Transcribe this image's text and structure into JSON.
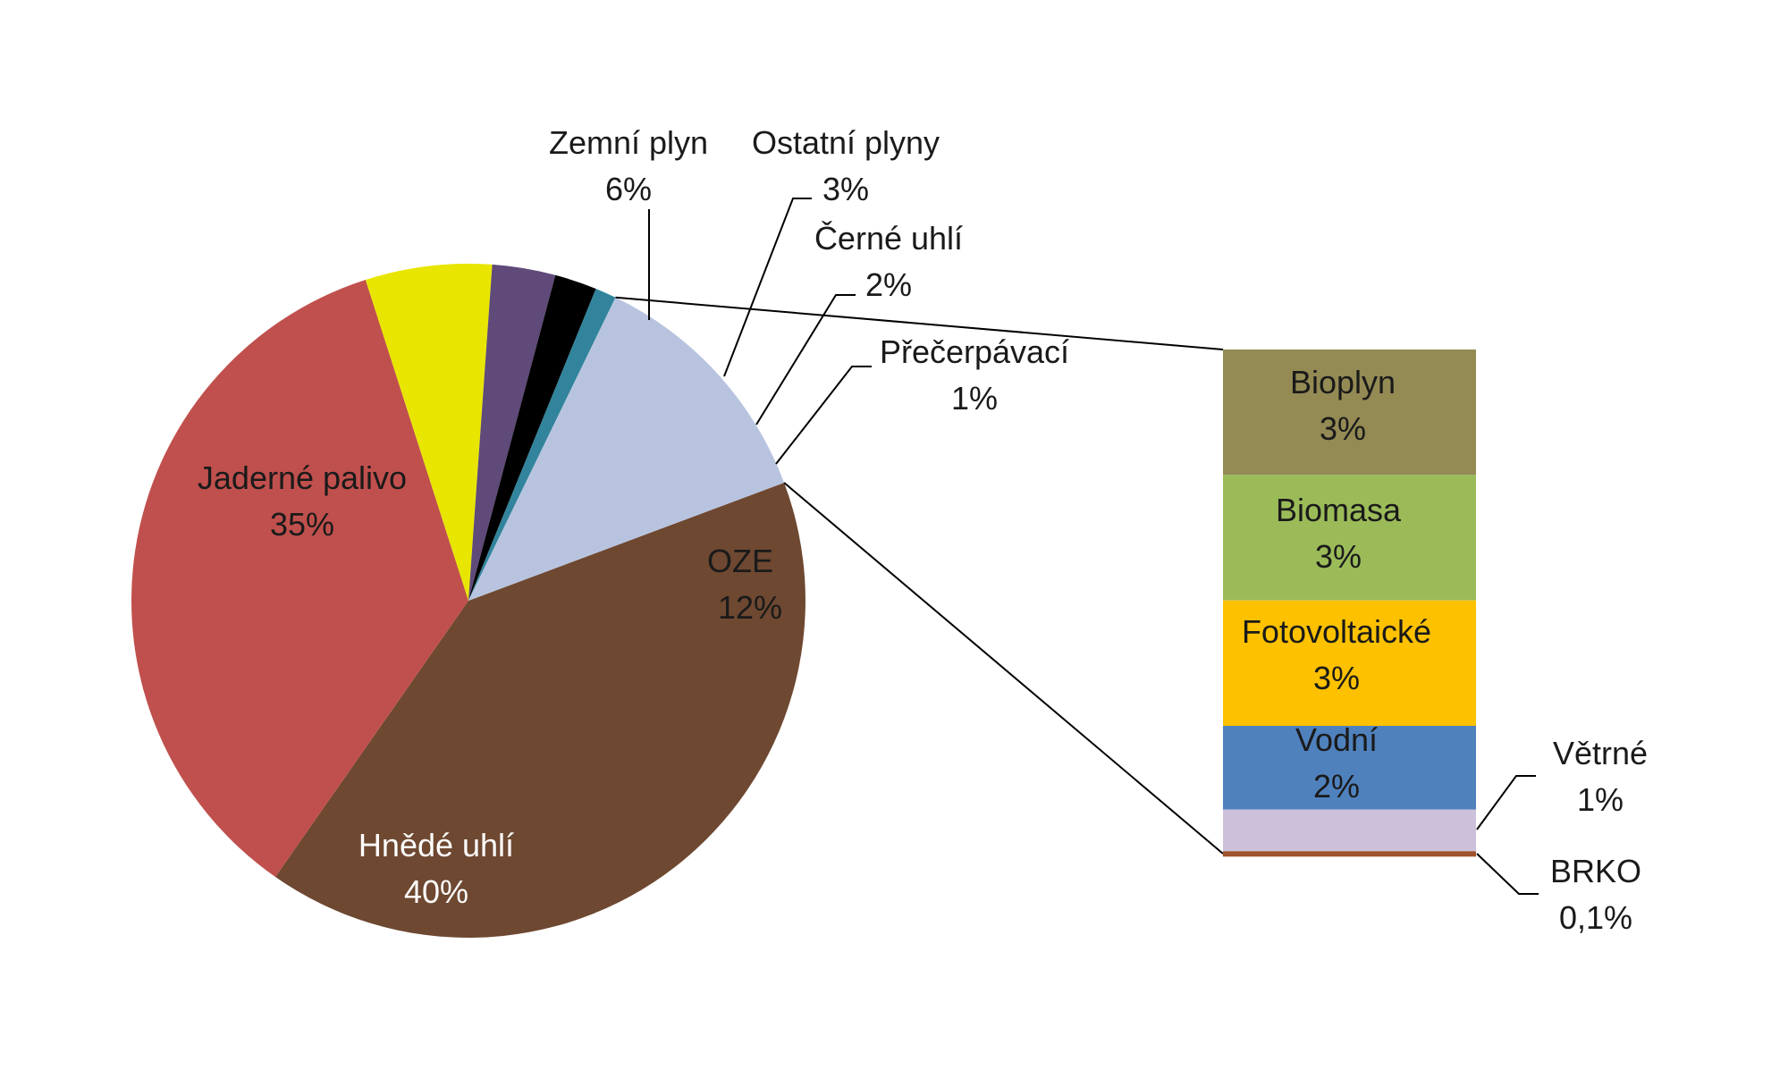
{
  "chart_data": [
    {
      "type": "pie",
      "slices": [
        {
          "label": "Hnědé uhlí",
          "value_label": "40%",
          "value": 40,
          "color": "#6e4831"
        },
        {
          "label": "Jaderné palivo",
          "value_label": "35%",
          "value": 35,
          "color": "#c0504d"
        },
        {
          "label": "Zemní plyn",
          "value_label": "6%",
          "value": 6,
          "color": "#e8e600"
        },
        {
          "label": "Ostatní plyny",
          "value_label": "3%",
          "value": 3,
          "color": "#5f4a7a"
        },
        {
          "label": "Černé uhlí",
          "value_label": "2%",
          "value": 2,
          "color": "#000000"
        },
        {
          "label": "Přečerpávací",
          "value_label": "1%",
          "value": 1,
          "color": "#31849b"
        },
        {
          "label": "OZE",
          "value_label": "12%",
          "value": 12,
          "color": "#b8c4df"
        }
      ]
    },
    {
      "type": "bar",
      "stacked": true,
      "breakdown_of": "OZE",
      "segments": [
        {
          "label": "Bioplyn",
          "value_label": "3%",
          "value": 3,
          "color": "#948a54"
        },
        {
          "label": "Biomasa",
          "value_label": "3%",
          "value": 3,
          "color": "#9bbb59"
        },
        {
          "label": "Fotovoltaické",
          "value_label": "3%",
          "value": 3,
          "color": "#fdc100"
        },
        {
          "label": "Vodní",
          "value_label": "2%",
          "value": 2,
          "color": "#4f81bd"
        },
        {
          "label": "Větrné",
          "value_label": "1%",
          "value": 1,
          "color": "#ccc0da"
        },
        {
          "label": "BRKO",
          "value_label": "0,1%",
          "value": 0.1,
          "color": "#a0522d"
        }
      ]
    }
  ]
}
